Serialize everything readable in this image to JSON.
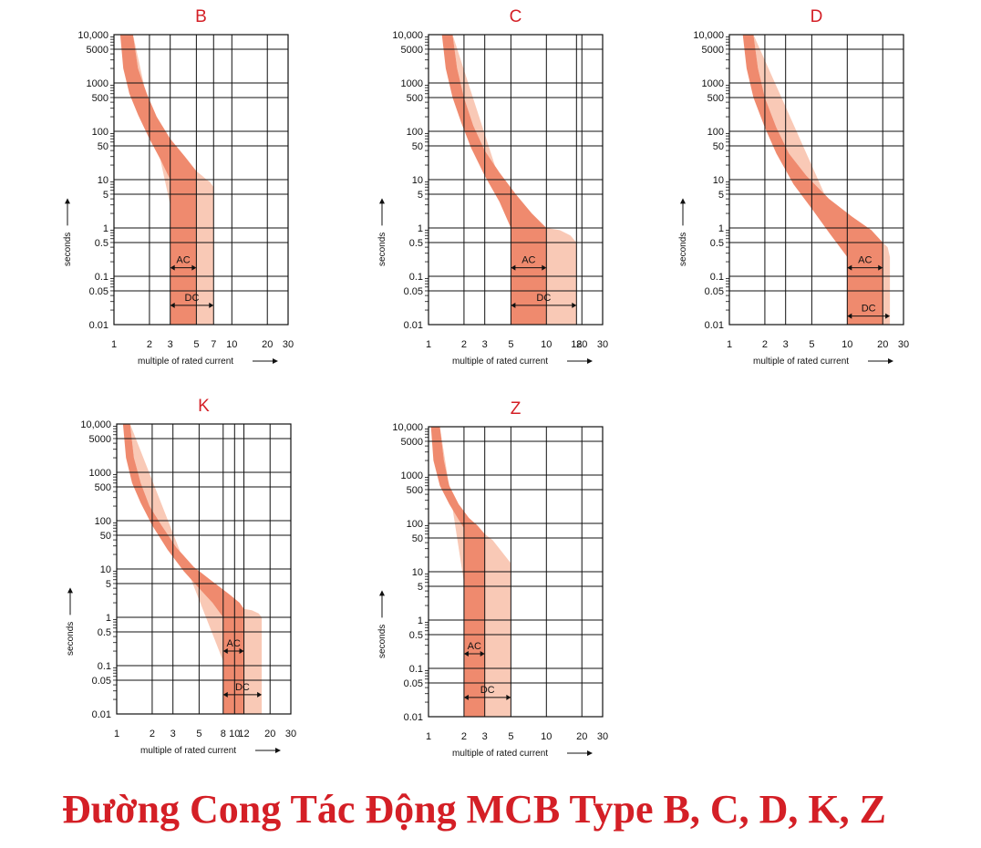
{
  "caption": "Đường Cong Tác Động MCB Type B, C, D, K, Z",
  "colors": {
    "title": "#d41f26",
    "band": "#ef8a6e",
    "band_dark": "#e9785a",
    "band_light": "#f9c9b6",
    "grid": "#111111"
  },
  "chart_data": [
    {
      "type": "area",
      "title": "B",
      "xlabel": "multiple of rated current",
      "ylabel": "seconds",
      "x_scale": "log",
      "y_scale": "log",
      "xlim": [
        1,
        30
      ],
      "ylim": [
        0.01,
        10000
      ],
      "x_ticks": [
        1,
        2,
        3,
        5,
        7,
        10,
        20,
        30
      ],
      "y_ticks": [
        0.01,
        0.05,
        0.1,
        0.5,
        1,
        5,
        10,
        50,
        100,
        500,
        1000,
        5000,
        10000
      ],
      "y_tick_labels": [
        "0.01",
        "0.05",
        "0.1",
        "0.5",
        "1",
        "5",
        "10",
        "50",
        "100",
        "500",
        "1000",
        "5000",
        "10,000"
      ],
      "grid": true,
      "band_lower": {
        "x": [
          1.13,
          1.2,
          1.35,
          1.6,
          2.0,
          2.5,
          3,
          3,
          3
        ],
        "y": [
          10000,
          2000,
          600,
          220,
          70,
          25,
          10,
          1,
          0.01
        ]
      },
      "band_upper": {
        "x": [
          1.45,
          1.6,
          1.9,
          2.3,
          3.0,
          4.0,
          5,
          5,
          5
        ],
        "y": [
          10000,
          2000,
          600,
          200,
          70,
          30,
          15,
          1,
          0.01
        ]
      },
      "band_dc": {
        "x": [
          5,
          5.6,
          6.1,
          6.5,
          7,
          7
        ],
        "y": [
          15,
          12,
          10,
          9,
          7,
          0.01
        ]
      },
      "annotations": [
        {
          "label": "AC",
          "x_range": [
            3,
            5
          ],
          "y": 0.15
        },
        {
          "label": "DC",
          "x_range": [
            3,
            7
          ],
          "y": 0.025
        }
      ]
    },
    {
      "type": "area",
      "title": "C",
      "xlabel": "multiple of rated current",
      "ylabel": "seconds",
      "x_scale": "log",
      "y_scale": "log",
      "xlim": [
        1,
        30
      ],
      "ylim": [
        0.01,
        10000
      ],
      "x_ticks": [
        1,
        2,
        3,
        5,
        10,
        18,
        20,
        30
      ],
      "y_ticks": [
        0.01,
        0.05,
        0.1,
        0.5,
        1,
        5,
        10,
        50,
        100,
        500,
        1000,
        5000,
        10000
      ],
      "y_tick_labels": [
        "0.01",
        "0.05",
        "0.1",
        "0.5",
        "1",
        "5",
        "10",
        "50",
        "100",
        "500",
        "1000",
        "5000",
        "10,000"
      ],
      "grid": true,
      "band_lower": {
        "x": [
          1.3,
          1.4,
          1.6,
          1.9,
          2.3,
          3.0,
          4.0,
          5,
          5
        ],
        "y": [
          10000,
          2000,
          500,
          150,
          45,
          12,
          3.5,
          1,
          0.01
        ]
      },
      "band_upper": {
        "x": [
          1.6,
          1.75,
          2.0,
          2.4,
          3.0,
          4.0,
          5.5,
          7.5,
          10,
          10
        ],
        "y": [
          10000,
          2000,
          500,
          130,
          40,
          14,
          5,
          2,
          1,
          0.01
        ]
      },
      "band_dc": {
        "x": [
          10,
          13,
          16,
          18,
          18
        ],
        "y": [
          1,
          0.9,
          0.7,
          0.5,
          0.01
        ]
      },
      "annotations": [
        {
          "label": "AC",
          "x_range": [
            5,
            10
          ],
          "y": 0.15
        },
        {
          "label": "DC",
          "x_range": [
            5,
            18
          ],
          "y": 0.025
        }
      ]
    },
    {
      "type": "area",
      "title": "D",
      "xlabel": "multiple of rated current",
      "ylabel": "seconds",
      "x_scale": "log",
      "y_scale": "log",
      "xlim": [
        1,
        30
      ],
      "ylim": [
        0.01,
        10000
      ],
      "x_ticks": [
        1,
        2,
        3,
        5,
        10,
        20,
        30
      ],
      "y_ticks": [
        0.01,
        0.05,
        0.1,
        0.5,
        1,
        5,
        10,
        50,
        100,
        500,
        1000,
        5000,
        10000
      ],
      "y_tick_labels": [
        "0.01",
        "0.05",
        "0.1",
        "0.5",
        "1",
        "5",
        "10",
        "50",
        "100",
        "500",
        "1000",
        "5000",
        "10,000"
      ],
      "grid": true,
      "band_lower": {
        "x": [
          1.3,
          1.4,
          1.6,
          2.0,
          2.5,
          3.5,
          5,
          7,
          10,
          10
        ],
        "y": [
          10000,
          2000,
          500,
          120,
          35,
          8,
          2.5,
          0.8,
          0.25,
          0.01
        ]
      },
      "band_upper": {
        "x": [
          1.6,
          1.75,
          2.0,
          2.5,
          3.2,
          4.5,
          7,
          11,
          16,
          20,
          20
        ],
        "y": [
          10000,
          2000,
          500,
          120,
          35,
          12,
          4,
          1.7,
          0.9,
          0.5,
          0.01
        ]
      },
      "band_dc": {
        "x": [
          20,
          22,
          23,
          23
        ],
        "y": [
          0.5,
          0.4,
          0.25,
          0.01
        ]
      },
      "annotations": [
        {
          "label": "AC",
          "x_range": [
            10,
            20
          ],
          "y": 0.15
        },
        {
          "label": "DC",
          "x_range": [
            10,
            23
          ],
          "y": 0.015
        }
      ]
    },
    {
      "type": "area",
      "title": "K",
      "xlabel": "multiple of rated current",
      "ylabel": "seconds",
      "x_scale": "log",
      "y_scale": "log",
      "xlim": [
        1,
        30
      ],
      "ylim": [
        0.01,
        10000
      ],
      "x_ticks": [
        1,
        2,
        3,
        5,
        8,
        10,
        12,
        20,
        30
      ],
      "y_ticks": [
        0.01,
        0.05,
        0.1,
        0.5,
        1,
        5,
        10,
        50,
        100,
        500,
        1000,
        5000,
        10000
      ],
      "y_tick_labels": [
        "0.01",
        "0.05",
        "0.1",
        "0.5",
        "1",
        "5",
        "10",
        "50",
        "100",
        "500",
        "1000",
        "5000",
        "10,000"
      ],
      "grid": true,
      "band_lower": {
        "x": [
          1.13,
          1.2,
          1.35,
          1.6,
          2.0,
          2.7,
          3.7,
          5,
          6.5,
          8,
          8
        ],
        "y": [
          10000,
          2000,
          600,
          230,
          80,
          25,
          9,
          4,
          2,
          1,
          0.01
        ]
      },
      "band_upper": {
        "x": [
          1.3,
          1.4,
          1.6,
          1.9,
          2.4,
          3.2,
          4.5,
          6.5,
          9,
          11,
          12,
          12
        ],
        "y": [
          10000,
          2000,
          600,
          200,
          80,
          28,
          11,
          5.5,
          3,
          2,
          1.5,
          0.01
        ]
      },
      "band_dc": {
        "x": [
          12,
          14,
          16,
          17,
          17
        ],
        "y": [
          1.5,
          1.4,
          1.2,
          1,
          0.01
        ]
      },
      "annotations": [
        {
          "label": "AC",
          "x_range": [
            8,
            12
          ],
          "y": 0.2
        },
        {
          "label": "DC",
          "x_range": [
            8,
            17
          ],
          "y": 0.025
        }
      ]
    },
    {
      "type": "area",
      "title": "Z",
      "xlabel": "multiple of rated current",
      "ylabel": "seconds",
      "x_scale": "log",
      "y_scale": "log",
      "xlim": [
        1,
        30
      ],
      "ylim": [
        0.01,
        10000
      ],
      "x_ticks": [
        1,
        2,
        3,
        5,
        10,
        20,
        30
      ],
      "y_ticks": [
        0.01,
        0.05,
        0.1,
        0.5,
        1,
        5,
        10,
        50,
        100,
        500,
        1000,
        5000,
        10000
      ],
      "y_tick_labels": [
        "0.01",
        "0.05",
        "0.1",
        "0.5",
        "1",
        "5",
        "10",
        "50",
        "100",
        "500",
        "1000",
        "5000",
        "10,000"
      ],
      "grid": true,
      "band_lower": {
        "x": [
          1.05,
          1.1,
          1.25,
          1.5,
          1.8,
          2,
          2
        ],
        "y": [
          10000,
          2000,
          600,
          250,
          120,
          80,
          0.01
        ]
      },
      "band_upper": {
        "x": [
          1.25,
          1.35,
          1.5,
          1.8,
          2.2,
          2.6,
          3,
          3
        ],
        "y": [
          10000,
          2000,
          600,
          250,
          130,
          90,
          60,
          0.01
        ]
      },
      "band_dc": {
        "x": [
          3,
          3.5,
          4,
          5,
          5
        ],
        "y": [
          60,
          45,
          30,
          15,
          0.01
        ]
      },
      "annotations": [
        {
          "label": "AC",
          "x_range": [
            2,
            3
          ],
          "y": 0.2
        },
        {
          "label": "DC",
          "x_range": [
            2,
            5
          ],
          "y": 0.025
        }
      ]
    }
  ]
}
